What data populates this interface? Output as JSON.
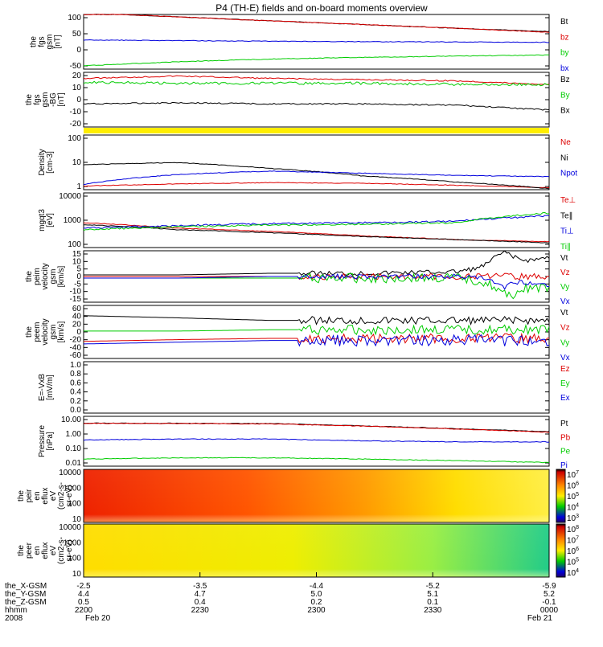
{
  "title": "P4 (TH-E) fields and on-board moments overview",
  "colors": {
    "black": "#000000",
    "red": "#dd0000",
    "green": "#00cc00",
    "blue": "#0000dd",
    "yellow": "#ffee00"
  },
  "panels": [
    {
      "key": "fgs_gsm",
      "ylabel": [
        "the",
        "fgs",
        "gsm",
        "[nT]"
      ],
      "ticks": [
        "100",
        "50",
        "0",
        "-50"
      ],
      "legend": [
        {
          "text": "Bt",
          "color": "black"
        },
        {
          "text": "bz",
          "color": "red"
        },
        {
          "text": "by",
          "color": "green"
        },
        {
          "text": "bx",
          "color": "blue"
        }
      ]
    },
    {
      "key": "fgs_bg",
      "ylabel": [
        "the",
        "fgs",
        "gsm",
        "-BG",
        "[nT]"
      ],
      "ticks": [
        "20",
        "10",
        "0",
        "-10",
        "-20"
      ],
      "legend": [
        {
          "text": "Bz",
          "color": "black"
        },
        {
          "text": "By",
          "color": "green"
        },
        {
          "text": "Bx",
          "color": "black"
        }
      ]
    },
    {
      "key": "density",
      "ylabel": [
        "Density",
        "[cm-3]"
      ],
      "ticks": [
        "100",
        "10",
        "1"
      ],
      "legend": [
        {
          "text": "Ne",
          "color": "red"
        },
        {
          "text": "Ni",
          "color": "black"
        },
        {
          "text": "Npot",
          "color": "blue"
        }
      ]
    },
    {
      "key": "temp",
      "ylabel": [
        "mgqt3",
        "[eV]"
      ],
      "ticks": [
        "10000",
        "1000",
        "100"
      ],
      "legend": [
        {
          "text": "Te⊥",
          "color": "red"
        },
        {
          "text": "Te∥",
          "color": "black"
        },
        {
          "text": "Ti⊥",
          "color": "blue"
        },
        {
          "text": "Ti∥",
          "color": "green"
        }
      ]
    },
    {
      "key": "peim_vel",
      "ylabel": [
        "the",
        "peim",
        "velocity",
        "gsm",
        "[km/s]"
      ],
      "ticks": [
        "15",
        "10",
        "5",
        "0",
        "-5",
        "-10",
        "-15"
      ],
      "legend": [
        {
          "text": "Vt",
          "color": "black"
        },
        {
          "text": "Vz",
          "color": "red"
        },
        {
          "text": "Vy",
          "color": "green"
        },
        {
          "text": "Vx",
          "color": "blue"
        }
      ]
    },
    {
      "key": "peem_vel",
      "ylabel": [
        "the",
        "peem",
        "velocity",
        "gsm",
        "[km/s]"
      ],
      "ticks": [
        "60",
        "40",
        "20",
        "0",
        "-20",
        "-40",
        "-60"
      ],
      "legend": [
        {
          "text": "Vt",
          "color": "black"
        },
        {
          "text": "Vz",
          "color": "red"
        },
        {
          "text": "Vy",
          "color": "green"
        },
        {
          "text": "Vx",
          "color": "blue"
        }
      ]
    },
    {
      "key": "efield",
      "ylabel": [
        "E=-VxB",
        "[mV/m]"
      ],
      "ticks": [
        "1.0",
        "0.8",
        "0.6",
        "0.4",
        "0.2",
        "0.0"
      ],
      "legend": [
        {
          "text": "Ez",
          "color": "red"
        },
        {
          "text": "Ey",
          "color": "green"
        },
        {
          "text": "Ex",
          "color": "blue"
        }
      ]
    },
    {
      "key": "pressure",
      "ylabel": [
        "Pressure",
        "[nPa]"
      ],
      "ticks": [
        "10.00",
        "1.00",
        "0.10",
        "0.01"
      ],
      "legend": [
        {
          "text": "Pt",
          "color": "black"
        },
        {
          "text": "Pb",
          "color": "red"
        },
        {
          "text": "Pe",
          "color": "green"
        },
        {
          "text": "Pi",
          "color": "blue"
        }
      ]
    },
    {
      "key": "peir_spec",
      "ylabel": [
        "the",
        "peir",
        "en",
        "eflux",
        "eV",
        "(cm2-s-",
        "sr-eV)"
      ],
      "ticks": [
        "10000",
        "1000",
        "100",
        "10"
      ],
      "cbar": [
        "10^7",
        "10^6",
        "10^5",
        "10^4",
        "10^3"
      ]
    },
    {
      "key": "peer_spec",
      "ylabel": [
        "the",
        "peer",
        "en",
        "eflux",
        "eV",
        "(cm2-s-",
        "sr-eV)"
      ],
      "ticks": [
        "10000",
        "1000",
        "100",
        "10"
      ],
      "cbar": [
        "10^8",
        "10^7",
        "10^6",
        "10^5",
        "10^4"
      ]
    }
  ],
  "xaxis": {
    "row_labels": [
      "the_X-GSM",
      "the_Y-GSM",
      "the_Z-GSM",
      "hhmm",
      "2008"
    ],
    "columns": [
      [
        "-2.5",
        "4.4",
        "0.5",
        "2200",
        "Feb 20"
      ],
      [
        "-3.5",
        "4.7",
        "0.4",
        "2230",
        ""
      ],
      [
        "-4.4",
        "5.0",
        "0.2",
        "2300",
        ""
      ],
      [
        "-5.2",
        "5.1",
        "0.1",
        "2330",
        ""
      ],
      [
        "-5.9",
        "5.2",
        "-0.1",
        "0000",
        "Feb 21"
      ]
    ]
  },
  "chart_data": [
    {
      "type": "line",
      "name": "fgs_gsm",
      "ylim": [
        -60,
        100
      ],
      "series": [
        {
          "name": "Bt",
          "values": [
            108,
            96,
            84,
            73,
            62,
            52
          ]
        },
        {
          "name": "bz",
          "values": [
            108,
            96,
            84,
            73,
            62,
            50
          ]
        },
        {
          "name": "by",
          "values": [
            -50,
            -38,
            -30,
            -25,
            -21,
            -18
          ]
        },
        {
          "name": "bx",
          "values": [
            27,
            25,
            23,
            22,
            21,
            20
          ]
        }
      ]
    },
    {
      "type": "line",
      "name": "fgs_bg",
      "ylim": [
        -25,
        20
      ],
      "series": [
        {
          "name": "Bz",
          "values": [
            15,
            17,
            15,
            14,
            13,
            10
          ]
        },
        {
          "name": "By",
          "values": [
            12,
            11,
            11,
            11,
            10,
            10
          ]
        },
        {
          "name": "Bx",
          "values": [
            -6,
            -5,
            -6,
            -6,
            -7,
            -11
          ]
        }
      ]
    },
    {
      "type": "line",
      "name": "density",
      "scale": "log",
      "series": [
        {
          "name": "Ne",
          "values": [
            1.4,
            1.7,
            1.9,
            1.8,
            1.5,
            1.2
          ]
        },
        {
          "name": "Ni",
          "values": [
            10,
            12,
            7,
            3.5,
            2,
            1.1
          ]
        },
        {
          "name": "Npot",
          "values": [
            1.6,
            4,
            5.5,
            4.5,
            3.7,
            3.3
          ]
        }
      ]
    },
    {
      "type": "line",
      "name": "temperature",
      "scale": "log",
      "series": [
        {
          "name": "Te⊥",
          "values": [
            600,
            350,
            250,
            160,
            110,
            90
          ]
        },
        {
          "name": "Te∥",
          "values": [
            500,
            300,
            220,
            150,
            110,
            80
          ]
        },
        {
          "name": "Ti⊥",
          "values": [
            350,
            450,
            550,
            600,
            700,
            1200
          ]
        },
        {
          "name": "Ti∥",
          "values": [
            300,
            400,
            470,
            520,
            600,
            1600
          ]
        }
      ]
    },
    {
      "type": "line",
      "name": "peim_velocity",
      "ylim": [
        -15,
        15
      ],
      "series": [
        {
          "name": "Vt",
          "values": [
            1,
            1,
            2,
            2,
            3,
            12
          ]
        },
        {
          "name": "Vz",
          "values": [
            0,
            0,
            0,
            0,
            0,
            0
          ]
        },
        {
          "name": "Vy",
          "values": [
            -1,
            -1,
            -1,
            -1,
            -1,
            -8
          ]
        },
        {
          "name": "Vx",
          "values": [
            -1,
            -1,
            0,
            0,
            0,
            -5
          ]
        }
      ]
    },
    {
      "type": "line",
      "name": "peem_velocity",
      "ylim": [
        -60,
        60
      ],
      "series": [
        {
          "name": "Vt",
          "values": [
            38,
            33,
            27,
            27,
            27,
            27
          ]
        },
        {
          "name": "Vz",
          "values": [
            -22,
            -18,
            -15,
            -15,
            -15,
            -15
          ]
        },
        {
          "name": "Vy",
          "values": [
            2,
            2,
            5,
            5,
            5,
            5
          ]
        },
        {
          "name": "Vx",
          "values": [
            -28,
            -24,
            -20,
            -20,
            -20,
            -20
          ]
        }
      ]
    },
    {
      "type": "line",
      "name": "pressure",
      "scale": "log",
      "series": [
        {
          "name": "Pt",
          "values": [
            4.5,
            4.4,
            4.2,
            3.0,
            2.0,
            1.3
          ]
        },
        {
          "name": "Pb",
          "values": [
            4.4,
            4.3,
            4.0,
            2.9,
            1.9,
            1.2
          ]
        },
        {
          "name": "Pe",
          "values": [
            0.025,
            0.03,
            0.03,
            0.025,
            0.02,
            0.015
          ]
        },
        {
          "name": "Pi",
          "values": [
            0.4,
            0.45,
            0.45,
            0.35,
            0.3,
            0.3
          ]
        }
      ]
    }
  ]
}
